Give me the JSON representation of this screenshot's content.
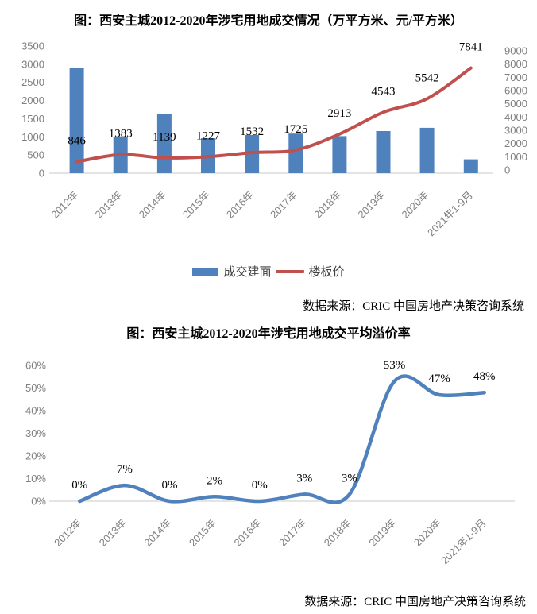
{
  "colors": {
    "bar_blue": "#4F81BD",
    "line_red": "#C0504D",
    "line_blue": "#4F81BD",
    "axis_text": "#7F7F7F",
    "axis_line": "#C8C8C8",
    "data_label_text": "#000000",
    "legend_text": "#404040"
  },
  "chart_data": [
    {
      "type": "bar",
      "title": "图：西安主城2012-2020年涉宅用地成交情况（万平方米、元/平方米）",
      "categories": [
        "2012年",
        "2013年",
        "2014年",
        "2015年",
        "2016年",
        "2017年",
        "2018年",
        "2019年",
        "2020年",
        "2021年1-9月"
      ],
      "series": [
        {
          "name": "成交建面",
          "chart_type": "bar",
          "axis": "left",
          "color": "#4F81BD",
          "values": [
            2900,
            1010,
            1620,
            960,
            1050,
            1090,
            1020,
            1160,
            1250,
            380
          ]
        },
        {
          "name": "楼板价",
          "chart_type": "line",
          "axis": "right",
          "color": "#C0504D",
          "values": [
            846,
            1383,
            1139,
            1227,
            1532,
            1725,
            2913,
            4543,
            5542,
            7841
          ],
          "data_labels": [
            "846",
            "1383",
            "1139",
            "1227",
            "1532",
            "1725",
            "2913",
            "4543",
            "5542",
            "7841"
          ]
        }
      ],
      "left_axis": {
        "min": 0,
        "max": 3500,
        "step": 500,
        "ticks": [
          "0",
          "500",
          "1000",
          "1500",
          "2000",
          "2500",
          "3000",
          "3500"
        ]
      },
      "right_axis": {
        "min": 0,
        "max": 9000,
        "step": 1000,
        "ticks": [
          "0",
          "1000",
          "2000",
          "3000",
          "4000",
          "5000",
          "6000",
          "7000",
          "8000",
          "9000"
        ]
      },
      "x_label_rotation": 45,
      "grid": "off",
      "legend_position": "bottom",
      "source": "数据来源：CRIC 中国房地产决策咨询系统"
    },
    {
      "type": "line",
      "title": "图：西安主城2012-2020年涉宅用地成交平均溢价率",
      "categories": [
        "2012年",
        "2013年",
        "2014年",
        "2015年",
        "2016年",
        "2017年",
        "2018年",
        "2019年",
        "2020年",
        "2021年1-9月"
      ],
      "series": [
        {
          "chart_type": "line",
          "axis": "left",
          "color": "#4F81BD",
          "values": [
            0,
            7,
            0,
            2,
            0,
            3,
            3,
            53,
            47,
            48
          ],
          "data_labels": [
            "0%",
            "7%",
            "0%",
            "2%",
            "0%",
            "3%",
            "3%",
            "53%",
            "47%",
            "48%"
          ]
        }
      ],
      "left_axis": {
        "min": 0,
        "max": 60,
        "step": 10,
        "ticks": [
          "0%",
          "10%",
          "20%",
          "30%",
          "40%",
          "50%",
          "60%"
        ]
      },
      "x_label_rotation": 45,
      "grid": "off",
      "legend_position": "none",
      "source": "数据来源：CRIC 中国房地产决策咨询系统"
    }
  ]
}
